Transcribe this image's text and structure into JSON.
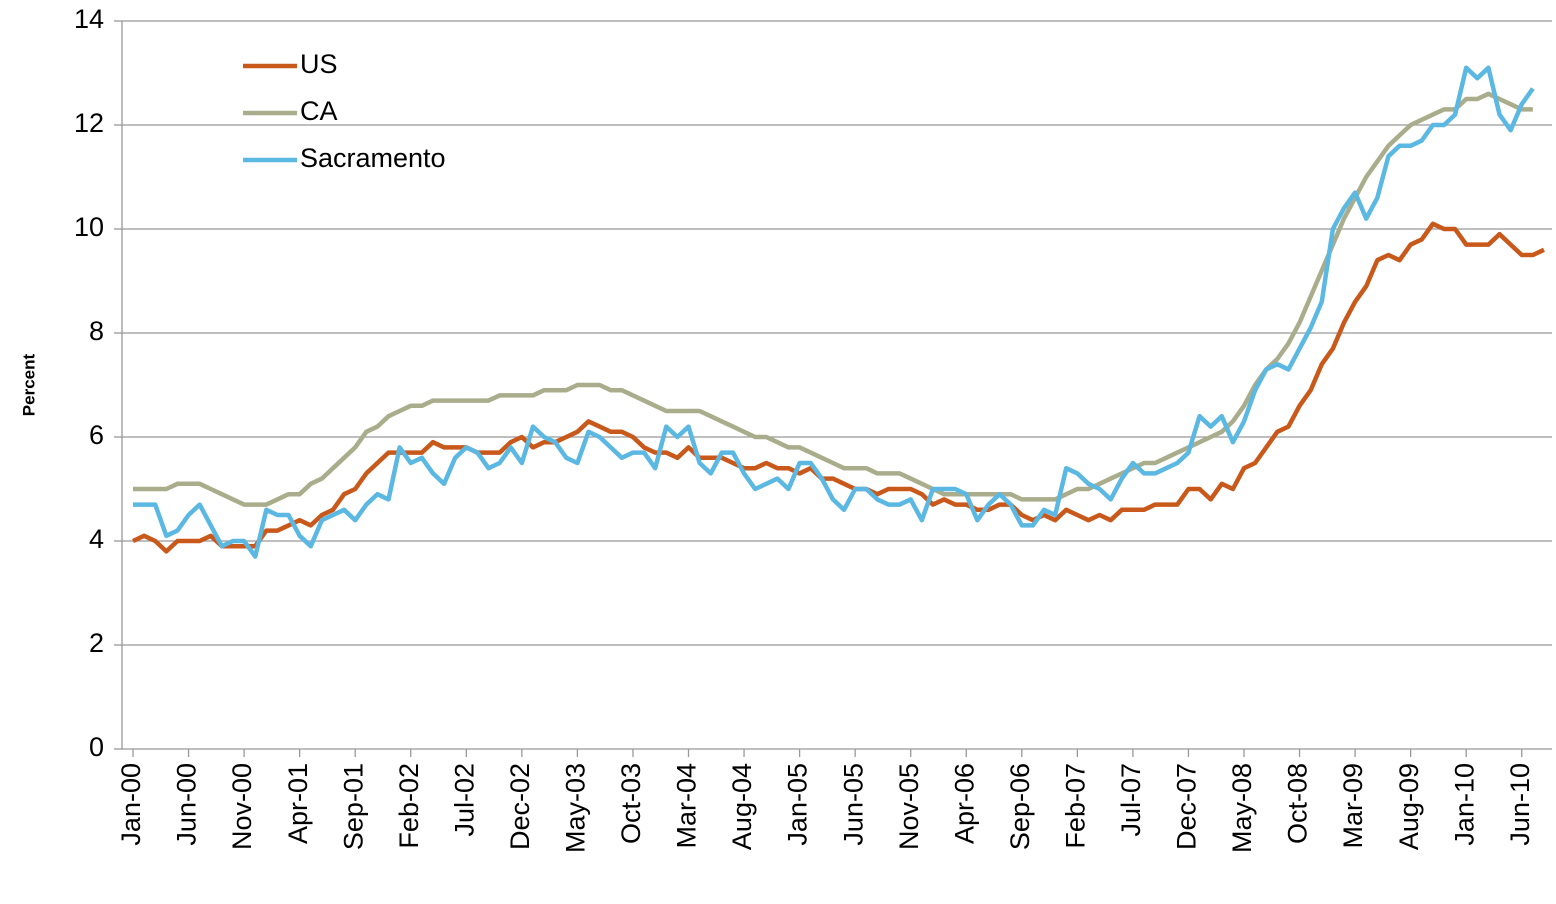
{
  "chart_data": {
    "type": "line",
    "y_label": "Percent",
    "categories": [
      "Jan-00",
      null,
      null,
      null,
      null,
      "Jun-00",
      null,
      null,
      null,
      null,
      "Nov-00",
      null,
      null,
      null,
      null,
      "Apr-01",
      null,
      null,
      null,
      null,
      "Sep-01",
      null,
      null,
      null,
      null,
      "Feb-02",
      null,
      null,
      null,
      null,
      "Jul-02",
      null,
      null,
      null,
      null,
      "Dec-02",
      null,
      null,
      null,
      null,
      "May-03",
      null,
      null,
      null,
      null,
      "Oct-03",
      null,
      null,
      null,
      null,
      "Mar-04",
      null,
      null,
      null,
      null,
      "Aug-04",
      null,
      null,
      null,
      null,
      "Jan-05",
      null,
      null,
      null,
      null,
      "Jun-05",
      null,
      null,
      null,
      null,
      "Nov-05",
      null,
      null,
      null,
      null,
      "Apr-06",
      null,
      null,
      null,
      null,
      "Sep-06",
      null,
      null,
      null,
      null,
      "Feb-07",
      null,
      null,
      null,
      null,
      "Jul-07",
      null,
      null,
      null,
      null,
      "Dec-07",
      null,
      null,
      null,
      null,
      "May-08",
      null,
      null,
      null,
      null,
      "Oct-08",
      null,
      null,
      null,
      null,
      "Mar-09",
      null,
      null,
      null,
      null,
      "Aug-09",
      null,
      null,
      null,
      null,
      "Jan-10",
      null,
      null,
      null,
      null,
      "Jun-10",
      null,
      null
    ],
    "series": [
      {
        "name": "US",
        "color": "#c9581b",
        "values": [
          4.0,
          4.1,
          4.0,
          3.8,
          4.0,
          4.0,
          4.0,
          4.1,
          3.9,
          3.9,
          3.9,
          3.9,
          4.2,
          4.2,
          4.3,
          4.4,
          4.3,
          4.5,
          4.6,
          4.9,
          5.0,
          5.3,
          5.5,
          5.7,
          5.7,
          5.7,
          5.7,
          5.9,
          5.8,
          5.8,
          5.8,
          5.7,
          5.7,
          5.7,
          5.9,
          6.0,
          5.8,
          5.9,
          5.9,
          6.0,
          6.1,
          6.3,
          6.2,
          6.1,
          6.1,
          6.0,
          5.8,
          5.7,
          5.7,
          5.6,
          5.8,
          5.6,
          5.6,
          5.6,
          5.5,
          5.4,
          5.4,
          5.5,
          5.4,
          5.4,
          5.3,
          5.4,
          5.2,
          5.2,
          5.1,
          5.0,
          5.0,
          4.9,
          5.0,
          5.0,
          5.0,
          4.9,
          4.7,
          4.8,
          4.7,
          4.7,
          4.6,
          4.6,
          4.7,
          4.7,
          4.5,
          4.4,
          4.5,
          4.4,
          4.6,
          4.5,
          4.4,
          4.5,
          4.4,
          4.6,
          4.6,
          4.6,
          4.7,
          4.7,
          4.7,
          5.0,
          5.0,
          4.8,
          5.1,
          5.0,
          5.4,
          5.5,
          5.8,
          6.1,
          6.2,
          6.6,
          6.9,
          7.4,
          7.7,
          8.2,
          8.6,
          8.9,
          9.4,
          9.5,
          9.4,
          9.7,
          9.8,
          10.1,
          10.0,
          10.0,
          9.7,
          9.7,
          9.7,
          9.9,
          9.7,
          9.5,
          9.5,
          9.6
        ]
      },
      {
        "name": "CA",
        "color": "#aaad8c",
        "values": [
          5.0,
          5.0,
          5.0,
          5.0,
          5.1,
          5.1,
          5.1,
          5.0,
          4.9,
          4.8,
          4.7,
          4.7,
          4.7,
          4.8,
          4.9,
          4.9,
          5.1,
          5.2,
          5.4,
          5.6,
          5.8,
          6.1,
          6.2,
          6.4,
          6.5,
          6.6,
          6.6,
          6.7,
          6.7,
          6.7,
          6.7,
          6.7,
          6.7,
          6.8,
          6.8,
          6.8,
          6.8,
          6.9,
          6.9,
          6.9,
          7.0,
          7.0,
          7.0,
          6.9,
          6.9,
          6.8,
          6.7,
          6.6,
          6.5,
          6.5,
          6.5,
          6.5,
          6.4,
          6.3,
          6.2,
          6.1,
          6.0,
          6.0,
          5.9,
          5.8,
          5.8,
          5.7,
          5.6,
          5.5,
          5.4,
          5.4,
          5.4,
          5.3,
          5.3,
          5.3,
          5.2,
          5.1,
          5.0,
          4.9,
          4.9,
          4.9,
          4.9,
          4.9,
          4.9,
          4.9,
          4.8,
          4.8,
          4.8,
          4.8,
          4.9,
          5.0,
          5.0,
          5.1,
          5.2,
          5.3,
          5.4,
          5.5,
          5.5,
          5.6,
          5.7,
          5.8,
          5.9,
          6.0,
          6.1,
          6.3,
          6.6,
          7.0,
          7.3,
          7.5,
          7.8,
          8.2,
          8.7,
          9.2,
          9.7,
          10.2,
          10.6,
          11.0,
          11.3,
          11.6,
          11.8,
          12.0,
          12.1,
          12.2,
          12.3,
          12.3,
          12.5,
          12.5,
          12.6,
          12.5,
          12.4,
          12.3,
          12.3,
          null
        ]
      },
      {
        "name": "Sacramento",
        "color": "#5bb8e2",
        "values": [
          4.7,
          4.7,
          4.7,
          4.1,
          4.2,
          4.5,
          4.7,
          4.3,
          3.9,
          4.0,
          4.0,
          3.7,
          4.6,
          4.5,
          4.5,
          4.1,
          3.9,
          4.4,
          4.5,
          4.6,
          4.4,
          4.7,
          4.9,
          4.8,
          5.8,
          5.5,
          5.6,
          5.3,
          5.1,
          5.6,
          5.8,
          5.7,
          5.4,
          5.5,
          5.8,
          5.5,
          6.2,
          6.0,
          5.9,
          5.6,
          5.5,
          6.1,
          6.0,
          5.8,
          5.6,
          5.7,
          5.7,
          5.4,
          6.2,
          6.0,
          6.2,
          5.5,
          5.3,
          5.7,
          5.7,
          5.3,
          5.0,
          5.1,
          5.2,
          5.0,
          5.5,
          5.5,
          5.2,
          4.8,
          4.6,
          5.0,
          5.0,
          4.8,
          4.7,
          4.7,
          4.8,
          4.4,
          5.0,
          5.0,
          5.0,
          4.9,
          4.4,
          4.7,
          4.9,
          4.7,
          4.3,
          4.3,
          4.6,
          4.5,
          5.4,
          5.3,
          5.1,
          5.0,
          4.8,
          5.2,
          5.5,
          5.3,
          5.3,
          5.4,
          5.5,
          5.7,
          6.4,
          6.2,
          6.4,
          5.9,
          6.3,
          6.9,
          7.3,
          7.4,
          7.3,
          7.7,
          8.1,
          8.6,
          10.0,
          10.4,
          10.7,
          10.2,
          10.6,
          11.4,
          11.6,
          11.6,
          11.7,
          12.0,
          12.0,
          12.2,
          13.1,
          12.9,
          13.1,
          12.2,
          11.9,
          12.4,
          12.7,
          null
        ]
      }
    ],
    "ylim": [
      0,
      14
    ],
    "yticks": [
      0,
      2,
      4,
      6,
      8,
      10,
      12,
      14
    ],
    "grid": true,
    "legend": "top-left"
  }
}
